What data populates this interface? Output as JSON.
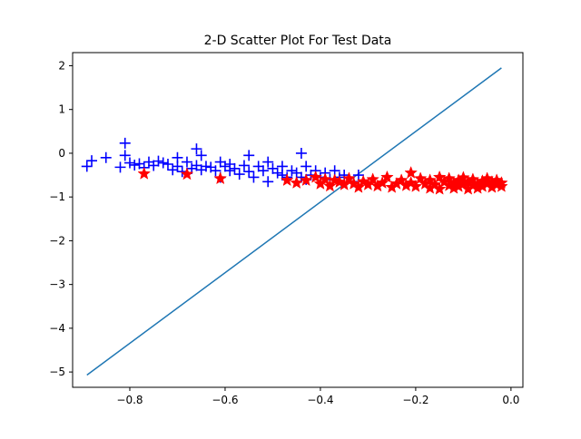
{
  "chart_data": {
    "type": "scatter",
    "title": "2-D Scatter Plot For Test Data",
    "xlabel": "",
    "ylabel": "",
    "xlim": [
      -0.92,
      0.025
    ],
    "ylim": [
      -5.35,
      2.3
    ],
    "grid": false,
    "legend": "none",
    "x_ticks": [
      -0.8,
      -0.6,
      -0.4,
      -0.2,
      0.0
    ],
    "x_tick_labels": [
      "−0.8",
      "−0.6",
      "−0.4",
      "−0.2",
      "0.0"
    ],
    "y_ticks": [
      2,
      1,
      0,
      -1,
      -2,
      -3,
      -4,
      -5
    ],
    "y_tick_labels": [
      "2",
      "1",
      "0",
      "−1",
      "−2",
      "−3",
      "−4",
      "−5"
    ],
    "colors": {
      "plus_series": "#0000ff",
      "star_series": "#ff0000",
      "line": "#1f77b4"
    },
    "line": {
      "x": [
        -0.89,
        -0.02
      ],
      "y": [
        -5.07,
        1.95
      ]
    },
    "series": [
      {
        "marker": "plus",
        "color": "#0000ff",
        "points": [
          [
            -0.89,
            -0.3
          ],
          [
            -0.88,
            -0.17
          ],
          [
            -0.85,
            -0.1
          ],
          [
            -0.82,
            -0.32
          ],
          [
            -0.81,
            0.23
          ],
          [
            -0.81,
            -0.05
          ],
          [
            -0.8,
            -0.22
          ],
          [
            -0.79,
            -0.27
          ],
          [
            -0.78,
            -0.24
          ],
          [
            -0.77,
            -0.33
          ],
          [
            -0.76,
            -0.2
          ],
          [
            -0.75,
            -0.28
          ],
          [
            -0.74,
            -0.18
          ],
          [
            -0.73,
            -0.22
          ],
          [
            -0.72,
            -0.25
          ],
          [
            -0.71,
            -0.38
          ],
          [
            -0.7,
            -0.1
          ],
          [
            -0.7,
            -0.3
          ],
          [
            -0.69,
            -0.42
          ],
          [
            -0.68,
            -0.2
          ],
          [
            -0.67,
            -0.35
          ],
          [
            -0.66,
            -0.28
          ],
          [
            -0.66,
            0.1
          ],
          [
            -0.65,
            -0.38
          ],
          [
            -0.65,
            -0.05
          ],
          [
            -0.64,
            -0.3
          ],
          [
            -0.63,
            -0.32
          ],
          [
            -0.62,
            -0.4
          ],
          [
            -0.61,
            -0.55
          ],
          [
            -0.61,
            -0.2
          ],
          [
            -0.6,
            -0.3
          ],
          [
            -0.59,
            -0.4
          ],
          [
            -0.59,
            -0.25
          ],
          [
            -0.58,
            -0.35
          ],
          [
            -0.57,
            -0.48
          ],
          [
            -0.56,
            -0.28
          ],
          [
            -0.55,
            -0.42
          ],
          [
            -0.55,
            -0.05
          ],
          [
            -0.54,
            -0.55
          ],
          [
            -0.53,
            -0.3
          ],
          [
            -0.52,
            -0.4
          ],
          [
            -0.51,
            -0.65
          ],
          [
            -0.51,
            -0.2
          ],
          [
            -0.5,
            -0.35
          ],
          [
            -0.49,
            -0.45
          ],
          [
            -0.48,
            -0.5
          ],
          [
            -0.48,
            -0.3
          ],
          [
            -0.47,
            -0.55
          ],
          [
            -0.46,
            -0.4
          ],
          [
            -0.45,
            -0.45
          ],
          [
            -0.44,
            0.0
          ],
          [
            -0.44,
            -0.55
          ],
          [
            -0.43,
            -0.3
          ],
          [
            -0.43,
            -0.6
          ],
          [
            -0.42,
            -0.5
          ],
          [
            -0.41,
            -0.4
          ],
          [
            -0.4,
            -0.55
          ],
          [
            -0.39,
            -0.45
          ],
          [
            -0.38,
            -0.6
          ],
          [
            -0.37,
            -0.4
          ],
          [
            -0.36,
            -0.55
          ],
          [
            -0.35,
            -0.5
          ],
          [
            -0.33,
            -0.65
          ],
          [
            -0.32,
            -0.5
          ]
        ]
      },
      {
        "marker": "star",
        "color": "#ff0000",
        "points": [
          [
            -0.77,
            -0.47
          ],
          [
            -0.68,
            -0.48
          ],
          [
            -0.61,
            -0.58
          ],
          [
            -0.47,
            -0.62
          ],
          [
            -0.45,
            -0.68
          ],
          [
            -0.43,
            -0.62
          ],
          [
            -0.41,
            -0.55
          ],
          [
            -0.4,
            -0.7
          ],
          [
            -0.39,
            -0.6
          ],
          [
            -0.38,
            -0.75
          ],
          [
            -0.37,
            -0.62
          ],
          [
            -0.36,
            -0.66
          ],
          [
            -0.35,
            -0.72
          ],
          [
            -0.34,
            -0.58
          ],
          [
            -0.33,
            -0.7
          ],
          [
            -0.32,
            -0.78
          ],
          [
            -0.31,
            -0.65
          ],
          [
            -0.3,
            -0.72
          ],
          [
            -0.29,
            -0.6
          ],
          [
            -0.28,
            -0.75
          ],
          [
            -0.27,
            -0.68
          ],
          [
            -0.26,
            -0.55
          ],
          [
            -0.25,
            -0.78
          ],
          [
            -0.24,
            -0.7
          ],
          [
            -0.23,
            -0.62
          ],
          [
            -0.22,
            -0.74
          ],
          [
            -0.21,
            -0.45
          ],
          [
            -0.21,
            -0.68
          ],
          [
            -0.2,
            -0.76
          ],
          [
            -0.19,
            -0.58
          ],
          [
            -0.18,
            -0.7
          ],
          [
            -0.17,
            -0.8
          ],
          [
            -0.17,
            -0.62
          ],
          [
            -0.16,
            -0.72
          ],
          [
            -0.15,
            -0.55
          ],
          [
            -0.15,
            -0.82
          ],
          [
            -0.14,
            -0.66
          ],
          [
            -0.13,
            -0.74
          ],
          [
            -0.13,
            -0.58
          ],
          [
            -0.12,
            -0.8
          ],
          [
            -0.12,
            -0.68
          ],
          [
            -0.11,
            -0.62
          ],
          [
            -0.11,
            -0.76
          ],
          [
            -0.1,
            -0.7
          ],
          [
            -0.1,
            -0.56
          ],
          [
            -0.09,
            -0.82
          ],
          [
            -0.09,
            -0.66
          ],
          [
            -0.08,
            -0.74
          ],
          [
            -0.08,
            -0.6
          ],
          [
            -0.07,
            -0.7
          ],
          [
            -0.07,
            -0.8
          ],
          [
            -0.06,
            -0.64
          ],
          [
            -0.06,
            -0.76
          ],
          [
            -0.05,
            -0.7
          ],
          [
            -0.05,
            -0.58
          ],
          [
            -0.04,
            -0.78
          ],
          [
            -0.04,
            -0.66
          ],
          [
            -0.03,
            -0.72
          ],
          [
            -0.03,
            -0.62
          ],
          [
            -0.02,
            -0.68
          ],
          [
            -0.02,
            -0.76
          ]
        ]
      }
    ]
  }
}
